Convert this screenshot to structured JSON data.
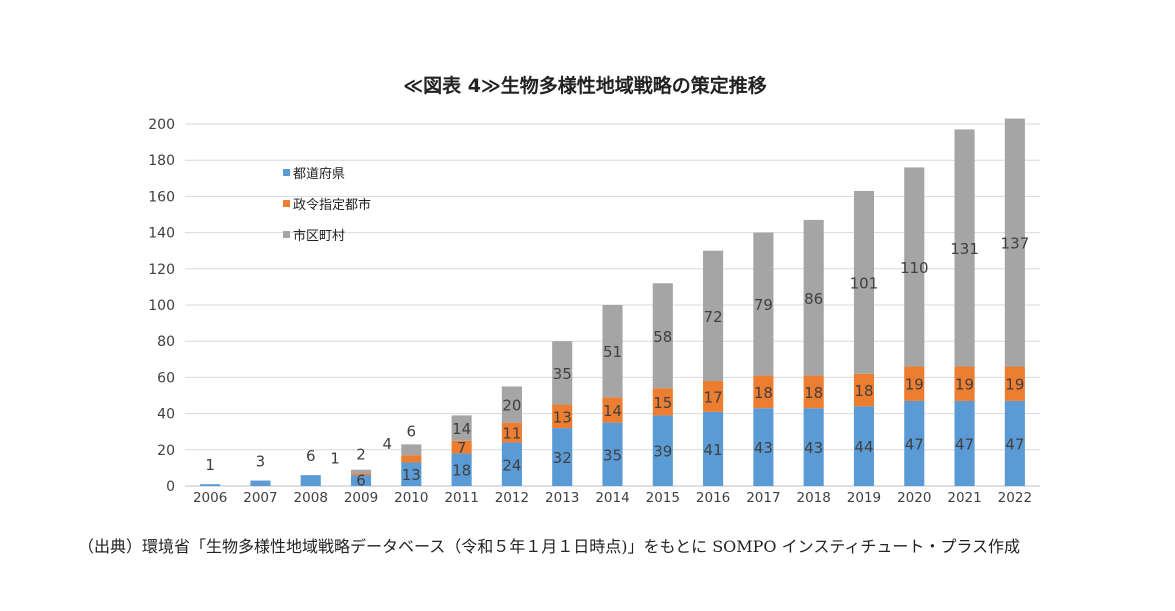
{
  "chart_data": {
    "type": "bar",
    "stacked": true,
    "title": "≪図表 4≫生物多様性地域戦略の策定推移",
    "categories": [
      "2006",
      "2007",
      "2008",
      "2009",
      "2010",
      "2011",
      "2012",
      "2013",
      "2014",
      "2015",
      "2016",
      "2017",
      "2018",
      "2019",
      "2020",
      "2021",
      "2022"
    ],
    "series": [
      {
        "name": "都道府県",
        "color": "#5b9bd5",
        "values": [
          1,
          3,
          6,
          6,
          13,
          18,
          24,
          32,
          35,
          39,
          41,
          43,
          43,
          44,
          47,
          47,
          47
        ]
      },
      {
        "name": "政令指定都市",
        "color": "#ed7d31",
        "values": [
          0,
          0,
          0,
          1,
          4,
          7,
          11,
          13,
          14,
          15,
          17,
          18,
          18,
          18,
          19,
          19,
          19
        ]
      },
      {
        "name": "市区町村",
        "color": "#a5a5a5",
        "values": [
          0,
          0,
          0,
          2,
          6,
          14,
          20,
          35,
          51,
          58,
          72,
          79,
          86,
          101,
          110,
          131,
          137
        ]
      }
    ],
    "data_labels": [
      [
        "1",
        "3",
        "6",
        "6",
        "13",
        "18",
        "24",
        "32",
        "35",
        "39",
        "41",
        "43",
        "43",
        "44",
        "47",
        "47",
        "47"
      ],
      [
        "",
        "",
        "",
        "1",
        "4",
        "7",
        "11",
        "13",
        "14",
        "15",
        "17",
        "18",
        "18",
        "18",
        "19",
        "19",
        "19"
      ],
      [
        "",
        "",
        "",
        "2",
        "6",
        "14",
        "20",
        "35",
        "51",
        "58",
        "72",
        "79",
        "86",
        "101",
        "110",
        "131",
        "137"
      ]
    ],
    "y_ticks": [
      "0",
      "20",
      "40",
      "60",
      "80",
      "100",
      "120",
      "140",
      "160",
      "180",
      "200"
    ],
    "ylim": [
      0,
      200
    ],
    "grid": true,
    "legend_position": "top-left"
  },
  "source_note": "（出典）環境省「生物多様性地域戦略データベース（令和５年１月１日時点)」をもとに SOMPO インスティチュート・プラス作成"
}
